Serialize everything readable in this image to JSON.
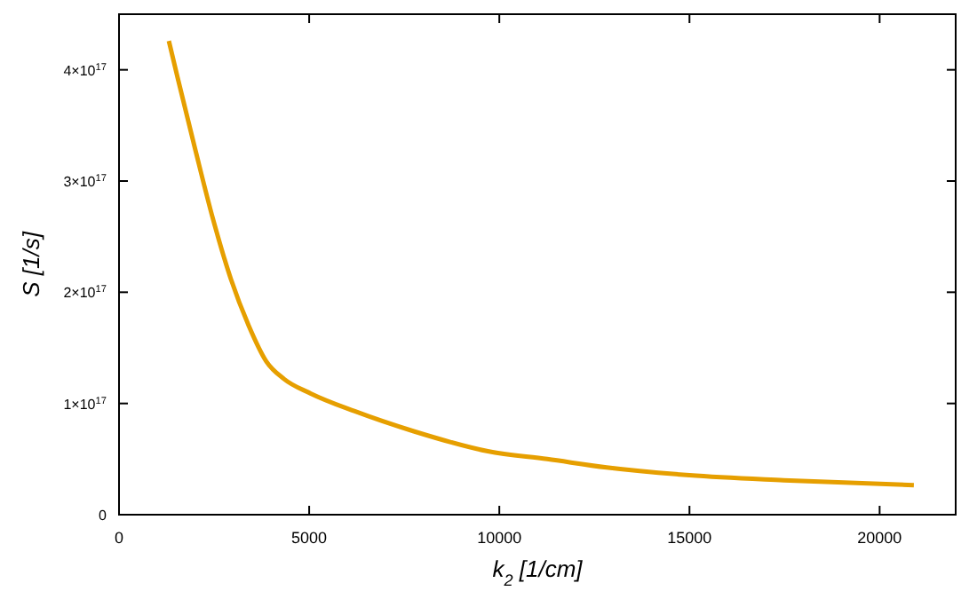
{
  "chart_data": {
    "type": "line",
    "xlabel": "k$_{2}$ [1/cm]",
    "ylabel": "S  [1/s]",
    "x": [
      1310,
      1540,
      2000,
      2470,
      2940,
      3410,
      3870,
      4340,
      5040,
      6200,
      7750,
      9700,
      11260,
      12820,
      15000,
      17480,
      20900
    ],
    "series": [
      {
        "color": "#e69f00",
        "values": [
          4.26e+17,
          3.93e+17,
          3.29e+17,
          2.66e+17,
          2.12e+17,
          1.7e+17,
          1.38e+17,
          1.22e+17,
          1.09e+17,
          9.3e+16,
          7.5e+16,
          5.7e+16,
          5e+16,
          4.25e+16,
          3.55e+16,
          3.1e+16,
          2.65e+16
        ]
      }
    ],
    "xlim": [
      0,
      22000
    ],
    "xticks": [
      0,
      5000,
      10000,
      15000,
      20000
    ],
    "ylim": [
      0,
      4.5e+17
    ],
    "yticks": [
      0,
      {
        "value": 1e+17,
        "label": "1×10$^{17}$"
      },
      {
        "value": 2e+17,
        "label": "2×10$^{17}$"
      },
      {
        "value": 3e+17,
        "label": "3×10$^{17}$"
      },
      {
        "value": 4e+17,
        "label": "4×10$^{17}$"
      }
    ],
    "marker": "none",
    "line_style": "solid"
  }
}
